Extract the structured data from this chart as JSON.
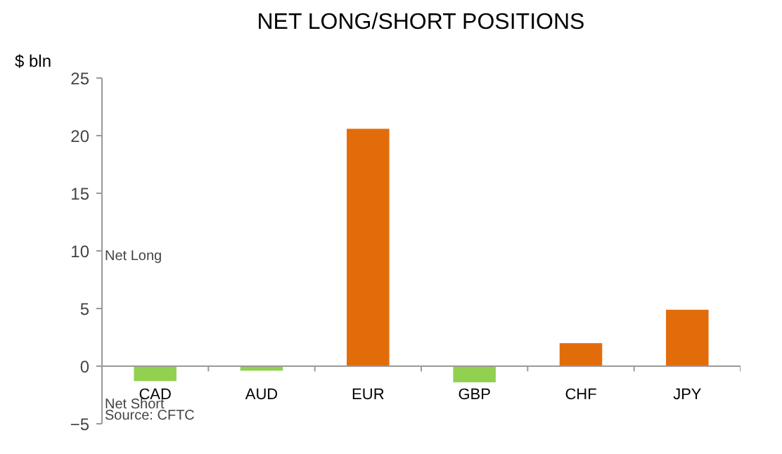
{
  "chart_data": {
    "type": "bar",
    "title": "NET LONG/SHORT POSITIONS",
    "ylabel": "$ bln",
    "categories": [
      "CAD",
      "AUD",
      "EUR",
      "GBP",
      "CHF",
      "JPY"
    ],
    "values": [
      -1.3,
      -0.4,
      20.6,
      -1.4,
      2.0,
      4.9
    ],
    "colors": [
      "#92d050",
      "#92d050",
      "#e36c0a",
      "#92d050",
      "#e36c0a",
      "#e36c0a"
    ],
    "ylim": [
      -5,
      25
    ],
    "yticks": [
      -5,
      0,
      5,
      10,
      15,
      20,
      25
    ],
    "grid": false,
    "annotations": [
      "Net Long",
      "Net Short",
      "Source: CFTC"
    ]
  }
}
